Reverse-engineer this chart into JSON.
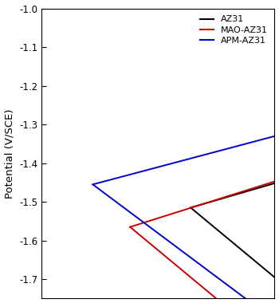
{
  "ylabel": "Potential (V/SCE)",
  "ylim": [
    -1.75,
    -1.0
  ],
  "yticks": [
    -1.0,
    -1.1,
    -1.2,
    -1.3,
    -1.4,
    -1.5,
    -1.6,
    -1.7
  ],
  "legend_labels": [
    "AZ31",
    "MAO-AZ31",
    "APM-AZ31"
  ],
  "legend_colors": [
    "#000000",
    "#cc0000",
    "#0000cc"
  ],
  "background_color": "#ffffff",
  "az31": {
    "E_corr": -1.515,
    "i_corr": -5.3,
    "bc": 0.1,
    "ba": 0.035,
    "E_cat_range": 0.22,
    "E_an_range": 0.22
  },
  "mao": {
    "E_corr": -1.565,
    "i_corr": -6.6,
    "bc": 0.1,
    "ba": 0.038,
    "E_cat_range": 0.2,
    "E_an_range": 0.35
  },
  "apm": {
    "E_corr": -1.455,
    "i_corr": -7.4,
    "bc": 0.09,
    "ba": 0.032,
    "E_cat_range": 0.32,
    "E_an_range": 0.26
  },
  "xlim": [
    -8.5,
    -3.5
  ]
}
